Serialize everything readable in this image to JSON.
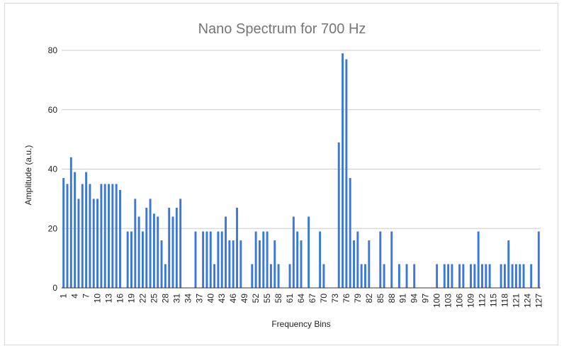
{
  "chart_data": {
    "type": "bar",
    "title": "Nano Spectrum for 700 Hz",
    "xlabel": "Frequency Bins",
    "ylabel": "Amplitude (a.u.)",
    "ylim": [
      0,
      80
    ],
    "yticks": [
      0,
      20,
      40,
      60,
      80
    ],
    "grid": true,
    "legend": "none",
    "bar_color": "#3c78d8",
    "x": [
      1,
      2,
      3,
      4,
      5,
      6,
      7,
      8,
      9,
      10,
      11,
      12,
      13,
      14,
      15,
      16,
      17,
      18,
      19,
      20,
      21,
      22,
      23,
      24,
      25,
      26,
      27,
      28,
      29,
      30,
      31,
      32,
      33,
      34,
      35,
      36,
      37,
      38,
      39,
      40,
      41,
      42,
      43,
      44,
      45,
      46,
      47,
      48,
      49,
      50,
      51,
      52,
      53,
      54,
      55,
      56,
      57,
      58,
      59,
      60,
      61,
      62,
      63,
      64,
      65,
      66,
      67,
      68,
      69,
      70,
      71,
      72,
      73,
      74,
      75,
      76,
      77,
      78,
      79,
      80,
      81,
      82,
      83,
      84,
      85,
      86,
      87,
      88,
      89,
      90,
      91,
      92,
      93,
      94,
      95,
      96,
      97,
      98,
      99,
      100,
      101,
      102,
      103,
      104,
      105,
      106,
      107,
      108,
      109,
      110,
      111,
      112,
      113,
      114,
      115,
      116,
      117,
      118,
      119,
      120,
      121,
      122,
      123,
      124,
      125,
      126,
      127
    ],
    "values": [
      37,
      35,
      44,
      39,
      30,
      35,
      39,
      35,
      30,
      30,
      35,
      35,
      35,
      35,
      35,
      33,
      0,
      19,
      19,
      30,
      24,
      19,
      27,
      30,
      25,
      24,
      16,
      8,
      27,
      24,
      27,
      30,
      0,
      0,
      0,
      19,
      0,
      19,
      19,
      19,
      8,
      19,
      19,
      24,
      16,
      16,
      27,
      16,
      0,
      0,
      8,
      19,
      16,
      19,
      19,
      8,
      16,
      8,
      0,
      0,
      8,
      24,
      19,
      16,
      0,
      24,
      0,
      0,
      19,
      8,
      0,
      0,
      0,
      49,
      79,
      77,
      37,
      16,
      19,
      8,
      8,
      16,
      0,
      0,
      19,
      8,
      0,
      19,
      0,
      8,
      0,
      8,
      0,
      8,
      0,
      0,
      0,
      0,
      0,
      8,
      0,
      8,
      8,
      8,
      0,
      8,
      8,
      0,
      8,
      8,
      19,
      8,
      8,
      8,
      0,
      0,
      8,
      8,
      16,
      8,
      8,
      8,
      8,
      0,
      8,
      0,
      19
    ],
    "xtick_labels": [
      "1",
      "4",
      "7",
      "10",
      "13",
      "16",
      "19",
      "22",
      "25",
      "28",
      "31",
      "34",
      "37",
      "40",
      "43",
      "46",
      "49",
      "52",
      "55",
      "58",
      "61",
      "64",
      "67",
      "70",
      "73",
      "76",
      "79",
      "82",
      "85",
      "88",
      "91",
      "94",
      "97",
      "100",
      "103",
      "106",
      "109",
      "112",
      "115",
      "118",
      "121",
      "124",
      "127"
    ]
  }
}
